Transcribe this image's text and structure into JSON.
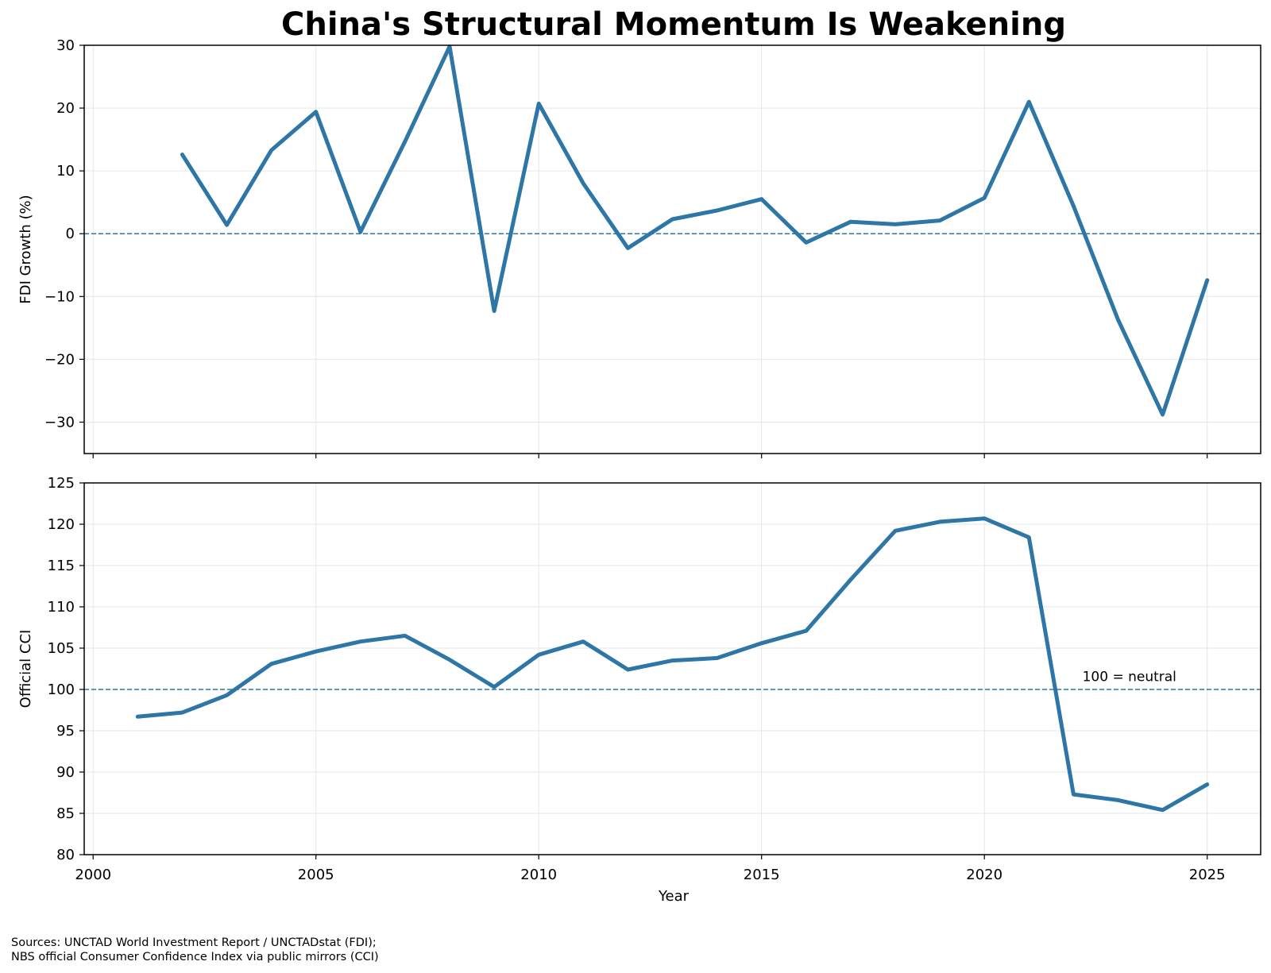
{
  "chart_data": {
    "type": "line",
    "title": "China's Structural Momentum Is Weakening",
    "xlabel": "Year",
    "xlim": [
      1999.8,
      2026.2
    ],
    "xticks": [
      2000,
      2005,
      2010,
      2015,
      2020,
      2025
    ],
    "grid": true,
    "colors": {
      "line": "#2e76a6",
      "reference": "#2e76a6",
      "grid": "#e6e6e6"
    },
    "panels": [
      {
        "id": "fdi",
        "ylabel": "FDI Growth (%)",
        "ylim": [
          -35,
          30
        ],
        "yticks": [
          -30,
          -20,
          -10,
          0,
          10,
          20,
          30
        ],
        "reference_line": 0,
        "series": [
          {
            "x": [
              2002,
              2003,
              2004,
              2005,
              2006,
              2007,
              2008,
              2009,
              2010,
              2011,
              2012,
              2013,
              2014,
              2015,
              2016,
              2017,
              2018,
              2019,
              2020,
              2021,
              2022,
              2023,
              2024,
              2025
            ],
            "values": [
              12.6,
              1.4,
              13.3,
              19.4,
              0.3,
              14.7,
              29.8,
              -12.3,
              20.7,
              8.0,
              -2.3,
              2.3,
              3.7,
              5.5,
              -1.4,
              1.9,
              1.5,
              2.1,
              5.7,
              21.0,
              4.4,
              -13.7,
              -28.8,
              -7.4
            ]
          }
        ]
      },
      {
        "id": "cci",
        "ylabel": "Official CCI",
        "ylim": [
          80,
          125
        ],
        "yticks": [
          80,
          85,
          90,
          95,
          100,
          105,
          110,
          115,
          120,
          125
        ],
        "reference_line": 100,
        "annotation": {
          "text": "100 = neutral",
          "x": 2022.2,
          "y": 101.0
        },
        "series": [
          {
            "x": [
              2001,
              2002,
              2003,
              2004,
              2005,
              2006,
              2007,
              2008,
              2009,
              2010,
              2011,
              2012,
              2013,
              2014,
              2015,
              2016,
              2017,
              2018,
              2019,
              2020,
              2021,
              2022,
              2023,
              2024,
              2025
            ],
            "values": [
              96.7,
              97.2,
              99.3,
              103.1,
              104.6,
              105.8,
              106.5,
              103.6,
              100.3,
              104.2,
              105.8,
              102.4,
              103.5,
              103.8,
              105.6,
              107.1,
              113.3,
              119.2,
              120.3,
              120.7,
              118.4,
              87.3,
              86.6,
              85.4,
              88.5
            ]
          }
        ]
      }
    ],
    "sources": [
      "Sources: UNCTAD World Investment Report / UNCTADstat (FDI);",
      "NBS official Consumer Confidence Index via public mirrors (CCI)"
    ]
  }
}
